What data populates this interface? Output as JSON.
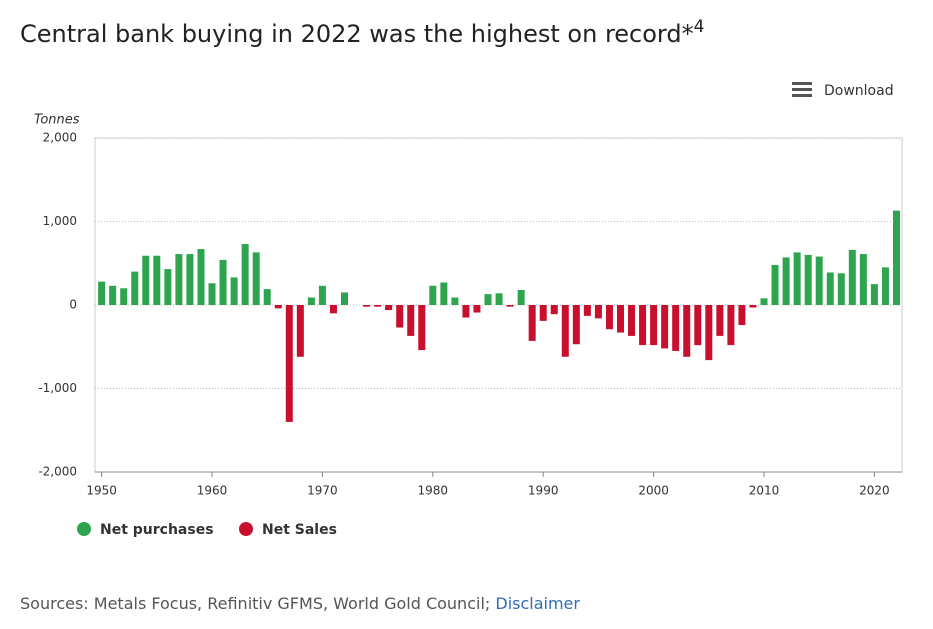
{
  "chart_data": {
    "type": "bar",
    "title": "Central bank buying in 2022 was the highest on record*",
    "title_superscript": "4",
    "download": "Download",
    "y_label": "Tonnes",
    "x": [
      1950,
      1951,
      1952,
      1953,
      1954,
      1955,
      1956,
      1957,
      1958,
      1959,
      1960,
      1961,
      1962,
      1963,
      1964,
      1965,
      1966,
      1967,
      1968,
      1969,
      1970,
      1971,
      1972,
      1973,
      1974,
      1975,
      1976,
      1977,
      1978,
      1979,
      1980,
      1981,
      1982,
      1983,
      1984,
      1985,
      1986,
      1987,
      1988,
      1989,
      1990,
      1991,
      1992,
      1993,
      1994,
      1995,
      1996,
      1997,
      1998,
      1999,
      2000,
      2001,
      2002,
      2003,
      2004,
      2005,
      2006,
      2007,
      2008,
      2009,
      2010,
      2011,
      2012,
      2013,
      2014,
      2015,
      2016,
      2017,
      2018,
      2019,
      2020,
      2021,
      2022
    ],
    "series": [
      {
        "name": "Net purchases",
        "color": "#2ea44f",
        "values": [
          280,
          230,
          200,
          400,
          590,
          590,
          430,
          610,
          610,
          670,
          260,
          540,
          330,
          730,
          630,
          190,
          null,
          null,
          null,
          90,
          230,
          null,
          150,
          null,
          null,
          null,
          null,
          null,
          null,
          null,
          230,
          270,
          90,
          null,
          null,
          130,
          140,
          null,
          180,
          null,
          null,
          null,
          null,
          null,
          null,
          null,
          null,
          null,
          null,
          null,
          null,
          null,
          null,
          null,
          null,
          null,
          null,
          null,
          null,
          null,
          80,
          480,
          570,
          630,
          600,
          580,
          390,
          380,
          660,
          610,
          250,
          450,
          1130
        ]
      },
      {
        "name": "Net Sales",
        "color": "#c8102e",
        "values": [
          null,
          null,
          null,
          null,
          null,
          null,
          null,
          null,
          null,
          null,
          null,
          null,
          null,
          null,
          null,
          null,
          -40,
          -1400,
          -620,
          null,
          null,
          -100,
          null,
          null,
          -20,
          -20,
          -60,
          -270,
          -370,
          -540,
          null,
          null,
          null,
          -150,
          -90,
          null,
          null,
          -20,
          null,
          -430,
          -190,
          -110,
          -620,
          -470,
          -130,
          -160,
          -290,
          -330,
          -370,
          -480,
          -480,
          -520,
          -550,
          -620,
          -480,
          -660,
          -370,
          -480,
          -240,
          -30,
          null,
          null,
          null,
          null,
          null,
          null,
          null,
          null,
          null,
          null,
          null,
          null,
          null
        ]
      }
    ],
    "xlim": [
      1949.4,
      2022.5
    ],
    "xticks": [
      1950,
      1960,
      1970,
      1980,
      1990,
      2000,
      2010,
      2020
    ],
    "ylim": [
      -2000,
      2000
    ],
    "yticks": [
      {
        "value": -2000,
        "label": "-2,000"
      },
      {
        "value": -1000,
        "label": "-1,000"
      },
      0,
      {
        "value": 1000,
        "label": "1,000"
      },
      {
        "value": 2000,
        "label": "2,000"
      }
    ],
    "grid": true,
    "source": "Sources: Metals Focus, Refinitiv GFMS, World Gold Council;",
    "source_link": "Disclaimer"
  }
}
